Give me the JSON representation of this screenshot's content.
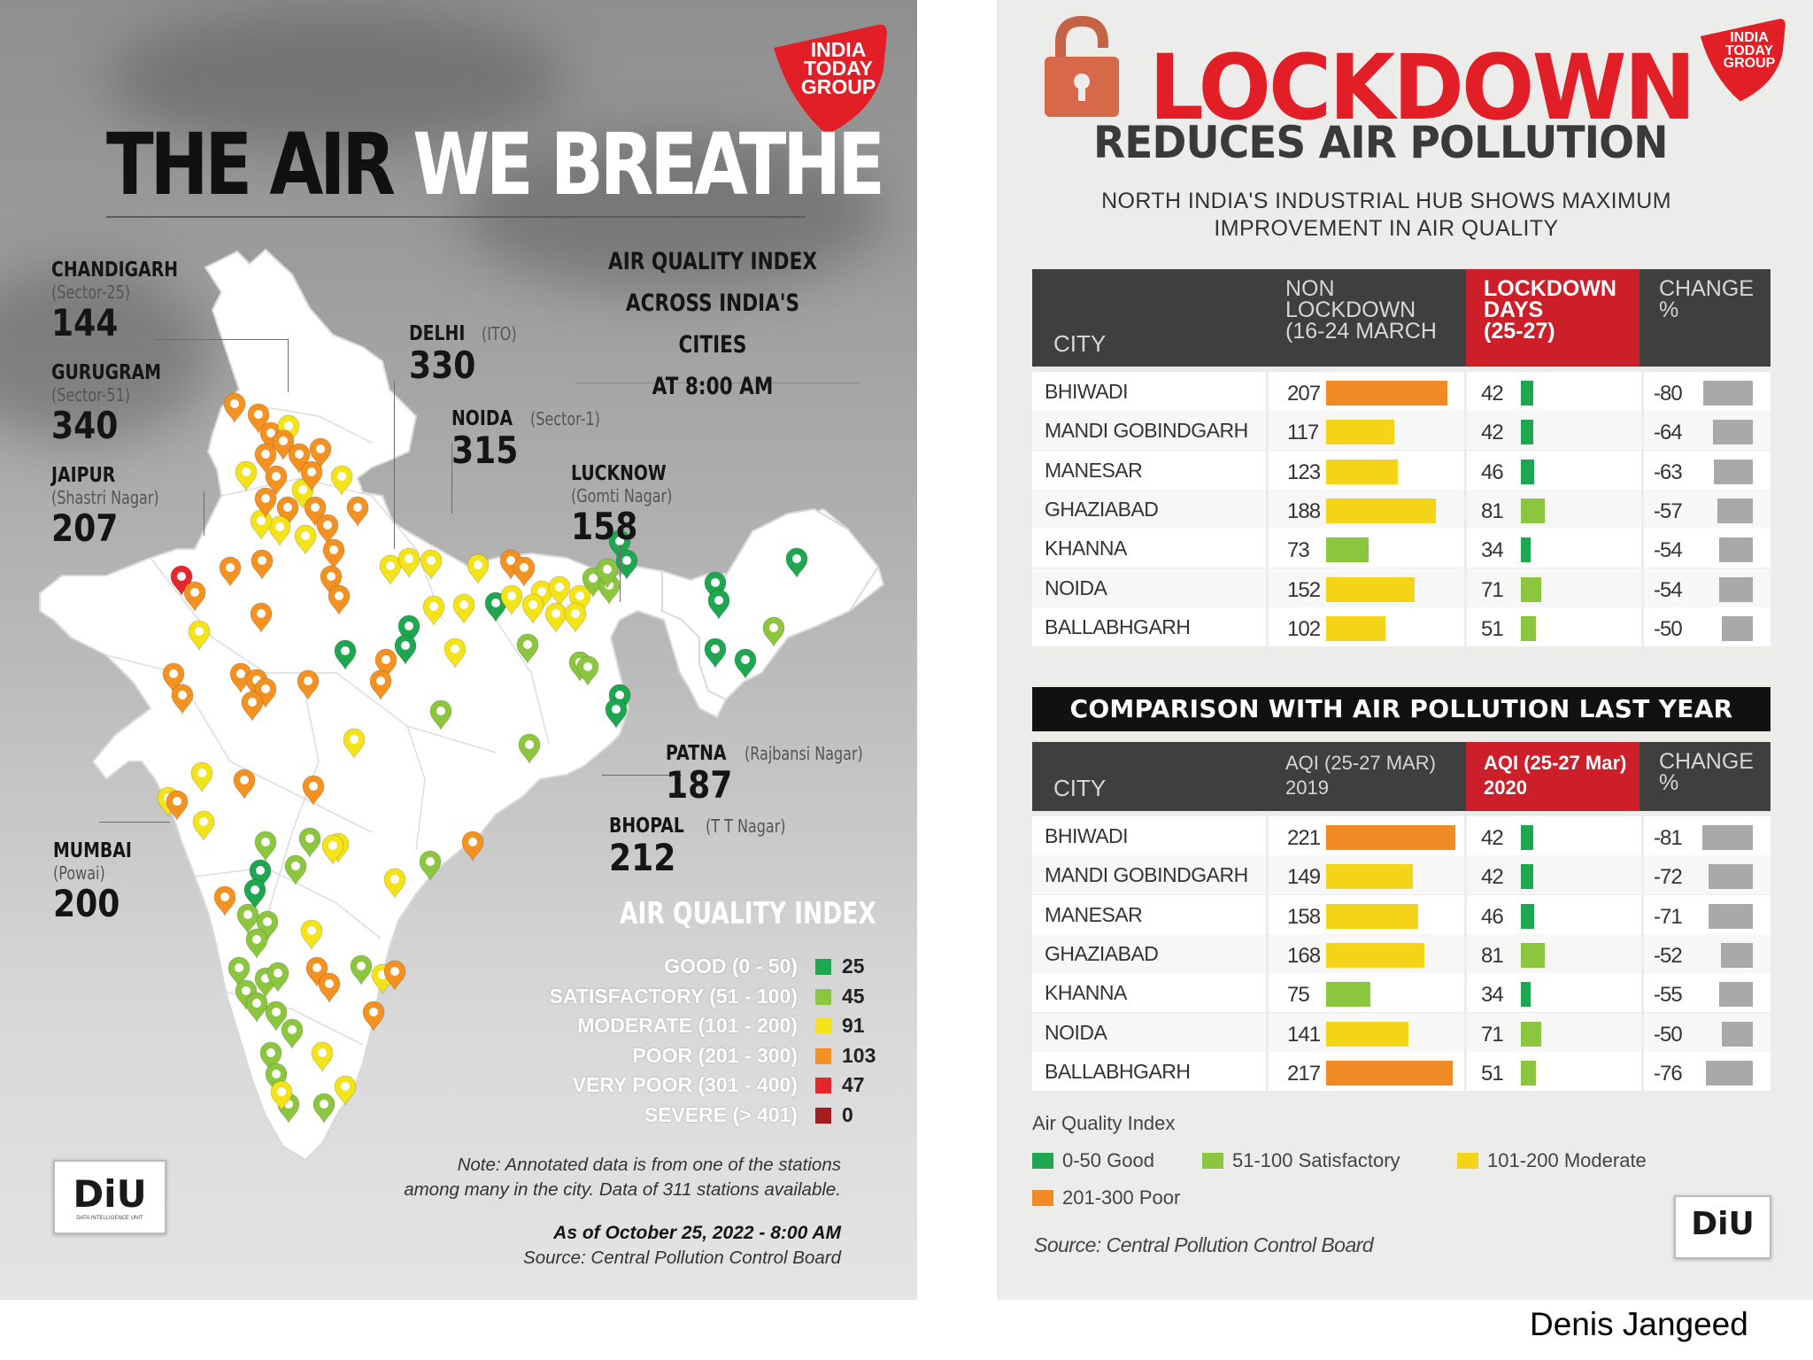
{
  "left": {
    "logo": [
      "INDIA",
      "TODAY",
      "GROUP"
    ],
    "title_dark": "THE AIR",
    "title_white": "WE BREATHE",
    "subtitle": [
      "AIR QUALITY INDEX",
      "ACROSS INDIA'S CITIES",
      "AT 8:00 AM"
    ],
    "cities": [
      {
        "name": "CHANDIGARH",
        "station": "(Sector-25)",
        "value": "144"
      },
      {
        "name": "GURUGRAM",
        "station": "(Sector-51)",
        "value": "340"
      },
      {
        "name": "JAIPUR",
        "station": "(Shastri Nagar)",
        "value": "207"
      },
      {
        "name": "DELHI",
        "station": "(ITO)",
        "value": "330"
      },
      {
        "name": "NOIDA",
        "station": "(Sector-1)",
        "value": "315"
      },
      {
        "name": "LUCKNOW",
        "station": "(Gomti Nagar)",
        "value": "158"
      },
      {
        "name": "PATNA",
        "station": "(Rajbansi Nagar)",
        "value": "187"
      },
      {
        "name": "BHOPAL",
        "station": "(T T Nagar)",
        "value": "212"
      },
      {
        "name": "MUMBAI",
        "station": "(Powai)",
        "value": "200"
      }
    ],
    "legend_title": "AIR QUALITY INDEX",
    "legend": [
      {
        "label": "GOOD (0 - 50)",
        "count": "25",
        "color": "#1fa650"
      },
      {
        "label": "SATISFACTORY (51 - 100)",
        "count": "45",
        "color": "#8cc63f"
      },
      {
        "label": "MODERATE (101 - 200)",
        "count": "91",
        "color": "#f3e318"
      },
      {
        "label": "POOR (201 - 300)",
        "count": "103",
        "color": "#f39221"
      },
      {
        "label": "VERY POOR (301 - 400)",
        "count": "47",
        "color": "#e5262b"
      },
      {
        "label": "SEVERE (> 401)",
        "count": "0",
        "color": "#a51d1f"
      }
    ],
    "diu": "DiU",
    "diu_sub": "DATA INTELLIGENCE UNIT",
    "note": [
      "Note: Annotated data is from one of the stations",
      "among many in the city. Data of 311 stations available."
    ],
    "as_of": "As of October 25, 2022 - 8:00 AM",
    "source": "Source: Central Pollution Control Board"
  },
  "right": {
    "logo": [
      "INDIA",
      "TODAY",
      "GROUP"
    ],
    "title": "LOCKDOWN",
    "subtitle": "REDUCES AIR POLLUTION",
    "tagline": [
      "NORTH INDIA'S INDUSTRIAL HUB SHOWS MAXIMUM",
      "IMPROVEMENT IN AIR QUALITY"
    ],
    "table1": {
      "headers": {
        "city": "CITY",
        "col1": [
          "NON",
          "LOCKDOWN",
          "(16-24 MARCH"
        ],
        "col2": [
          "LOCKDOWN",
          "DAYS",
          "(25-27)"
        ],
        "col3": [
          "CHANGE",
          "%"
        ]
      }
    },
    "comparison_title": "COMPARISON WITH AIR POLLUTION LAST YEAR",
    "table2": {
      "headers": {
        "city": "CITY",
        "col1": [
          "AQI (25-27 MAR)",
          "2019"
        ],
        "col2": [
          "AQI (25-27 Mar)",
          "2020"
        ],
        "col3": [
          "CHANGE",
          "%"
        ]
      }
    },
    "legend_title": "Air Quality Index",
    "legend": [
      {
        "label": "0-50 Good",
        "color": "#1fa650"
      },
      {
        "label": "51-100 Satisfactory",
        "color": "#8cc63f"
      },
      {
        "label": "101-200 Moderate",
        "color": "#f3d418"
      },
      {
        "label": "201-300 Poor",
        "color": "#f08a24"
      }
    ],
    "diu": "DiU",
    "source": "Source: Central Pollution Control Board"
  },
  "credit": "Denis Jangeed",
  "chart_data": [
    {
      "type": "table",
      "title": "LOCKDOWN REDUCES AIR POLLUTION",
      "columns": [
        "CITY",
        "NON LOCKDOWN (16-24 MARCH",
        "LOCKDOWN DAYS (25-27)",
        "CHANGE %"
      ],
      "rows": [
        {
          "city": "BHIWADI",
          "non_lockdown": 207,
          "lockdown": 42,
          "change": -80
        },
        {
          "city": "MANDI GOBINDGARH",
          "non_lockdown": 117,
          "lockdown": 42,
          "change": -64
        },
        {
          "city": "MANESAR",
          "non_lockdown": 123,
          "lockdown": 46,
          "change": -63
        },
        {
          "city": "GHAZIABAD",
          "non_lockdown": 188,
          "lockdown": 81,
          "change": -57
        },
        {
          "city": "KHANNA",
          "non_lockdown": 73,
          "lockdown": 34,
          "change": -54
        },
        {
          "city": "NOIDA",
          "non_lockdown": 152,
          "lockdown": 71,
          "change": -54
        },
        {
          "city": "BALLABHGARH",
          "non_lockdown": 102,
          "lockdown": 51,
          "change": -50
        }
      ]
    },
    {
      "type": "table",
      "title": "COMPARISON WITH AIR POLLUTION LAST YEAR",
      "columns": [
        "CITY",
        "AQI (25-27 MAR) 2019",
        "AQI (25-27 Mar) 2020",
        "CHANGE %"
      ],
      "rows": [
        {
          "city": "BHIWADI",
          "aqi_2019": 221,
          "aqi_2020": 42,
          "change": -81
        },
        {
          "city": "MANDI GOBINDGARH",
          "aqi_2019": 149,
          "aqi_2020": 42,
          "change": -72
        },
        {
          "city": "MANESAR",
          "aqi_2019": 158,
          "aqi_2020": 46,
          "change": -71
        },
        {
          "city": "GHAZIABAD",
          "aqi_2019": 168,
          "aqi_2020": 81,
          "change": -52
        },
        {
          "city": "KHANNA",
          "aqi_2019": 75,
          "aqi_2020": 34,
          "change": -55
        },
        {
          "city": "NOIDA",
          "aqi_2019": 141,
          "aqi_2020": 71,
          "change": -50
        },
        {
          "city": "BALLABHGARH",
          "aqi_2019": 217,
          "aqi_2020": 51,
          "change": -76
        }
      ]
    }
  ]
}
